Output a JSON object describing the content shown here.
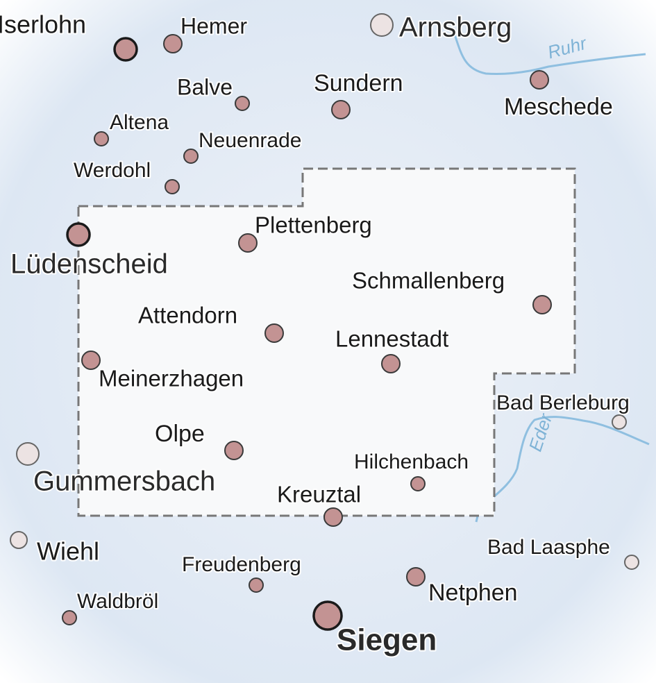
{
  "places": [
    {
      "name": "Iserlohn"
    },
    {
      "name": "Hemer"
    },
    {
      "name": "Arnsberg"
    },
    {
      "name": "Balve"
    },
    {
      "name": "Sundern"
    },
    {
      "name": "Meschede"
    },
    {
      "name": "Altena"
    },
    {
      "name": "Neuenrade"
    },
    {
      "name": "Werdohl"
    },
    {
      "name": "Plettenberg"
    },
    {
      "name": "Lüdenscheid"
    },
    {
      "name": "Schmallenberg"
    },
    {
      "name": "Attendorn"
    },
    {
      "name": "Lennestadt"
    },
    {
      "name": "Meinerzhagen"
    },
    {
      "name": "Bad Berleburg"
    },
    {
      "name": "Olpe"
    },
    {
      "name": "Hilchenbach"
    },
    {
      "name": "Gummersbach"
    },
    {
      "name": "Kreuztal"
    },
    {
      "name": "Wiehl"
    },
    {
      "name": "Bad Laasphe"
    },
    {
      "name": "Freudenberg"
    },
    {
      "name": "Netphen"
    },
    {
      "name": "Waldbröl"
    },
    {
      "name": "Siegen"
    }
  ],
  "rivers": [
    {
      "name": "Ruhr"
    },
    {
      "name": "Eder"
    }
  ]
}
